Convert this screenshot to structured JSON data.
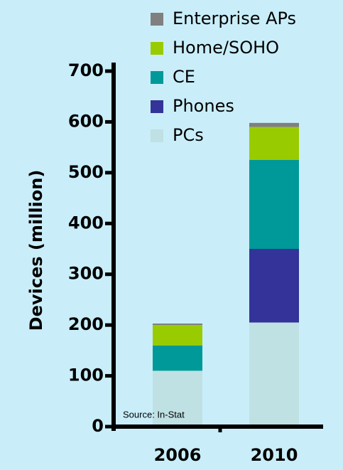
{
  "chart_data": {
    "type": "stacked_bar",
    "y_label": "Devices (million)",
    "annotation": "Source: In-Stat",
    "categories": [
      "2006",
      "2010"
    ],
    "series": [
      {
        "name": "PCs",
        "color": "#bfe1e3",
        "values": [
          110,
          205
        ]
      },
      {
        "name": "Phones",
        "color": "#333399",
        "values": [
          0,
          145
        ]
      },
      {
        "name": "CE",
        "color": "#009999",
        "values": [
          50,
          175
        ]
      },
      {
        "name": "Home/SOHO",
        "color": "#99cc00",
        "values": [
          40,
          65
        ]
      },
      {
        "name": "Enterprise APs",
        "color": "#808080",
        "values": [
          3,
          8
        ]
      }
    ],
    "ylim": [
      0,
      700
    ],
    "yticks": [
      0,
      100,
      200,
      300,
      400,
      500,
      600,
      700
    ]
  }
}
